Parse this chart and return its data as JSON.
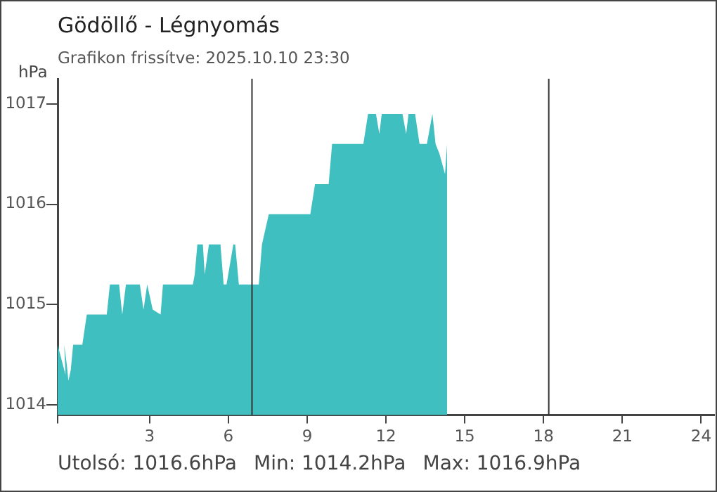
{
  "chart_data": {
    "type": "area",
    "title": "Gödöllő - Légnyomás",
    "subtitle": "Grafikon frissítve: 2025.10.10 23:30",
    "ylabel": "hPa",
    "x": [
      -0.5,
      -0.4,
      -0.3,
      -0.2,
      -0.25,
      -0.15,
      -0.09,
      0.0,
      0.09,
      0.44,
      0.61,
      1.37,
      1.49,
      1.84,
      1.96,
      2.1,
      2.63,
      2.77,
      2.91,
      3.12,
      3.42,
      3.51,
      4.65,
      4.72,
      4.82,
      5.03,
      5.1,
      5.26,
      5.7,
      5.82,
      5.93,
      6.19,
      6.26,
      6.4,
      6.49,
      7.16,
      7.28,
      7.54,
      9.12,
      9.3,
      9.82,
      9.95,
      11.14,
      11.32,
      11.62,
      11.75,
      11.84,
      12.63,
      12.77,
      12.86,
      13.11,
      13.28,
      13.56,
      13.77,
      13.89,
      14.04,
      14.25,
      14.33
    ],
    "series": [
      {
        "color": "#40bfc1",
        "values": [
          1014.6,
          1014.5,
          1014.4,
          1014.3,
          1014.6,
          1014.4,
          1014.24,
          1014.35,
          1014.6,
          1014.6,
          1014.9,
          1014.9,
          1015.2,
          1015.2,
          1014.9,
          1015.2,
          1015.2,
          1014.95,
          1015.2,
          1014.95,
          1014.9,
          1015.2,
          1015.2,
          1015.3,
          1015.6,
          1015.6,
          1015.3,
          1015.6,
          1015.6,
          1015.2,
          1015.2,
          1015.6,
          1015.6,
          1015.2,
          1015.2,
          1015.2,
          1015.6,
          1015.9,
          1015.9,
          1016.2,
          1016.2,
          1016.6,
          1016.6,
          1016.9,
          1016.9,
          1016.7,
          1016.9,
          1016.9,
          1016.7,
          1016.9,
          1016.9,
          1016.6,
          1016.6,
          1016.9,
          1016.6,
          1016.5,
          1016.3,
          1016.6
        ]
      }
    ],
    "xlim": [
      -0.5,
      24.5
    ],
    "xticks": [
      {
        "value": -0.5,
        "label": null
      },
      3,
      6,
      9,
      12,
      15,
      18,
      21,
      24
    ],
    "ylim": [
      1013.9,
      1017.25
    ],
    "yticks": [
      1014,
      1015,
      1016,
      1017
    ],
    "grid": false,
    "legend": false,
    "ref_lines": [
      {
        "axis": "x",
        "value": 6.9,
        "color": "#333333"
      },
      {
        "axis": "x",
        "value": 18.2,
        "color": "#333333"
      }
    ],
    "annotations": [
      "Utolsó: 1016.6hPa",
      "Min: 1014.2hPa",
      "Max: 1016.9hPa"
    ]
  }
}
